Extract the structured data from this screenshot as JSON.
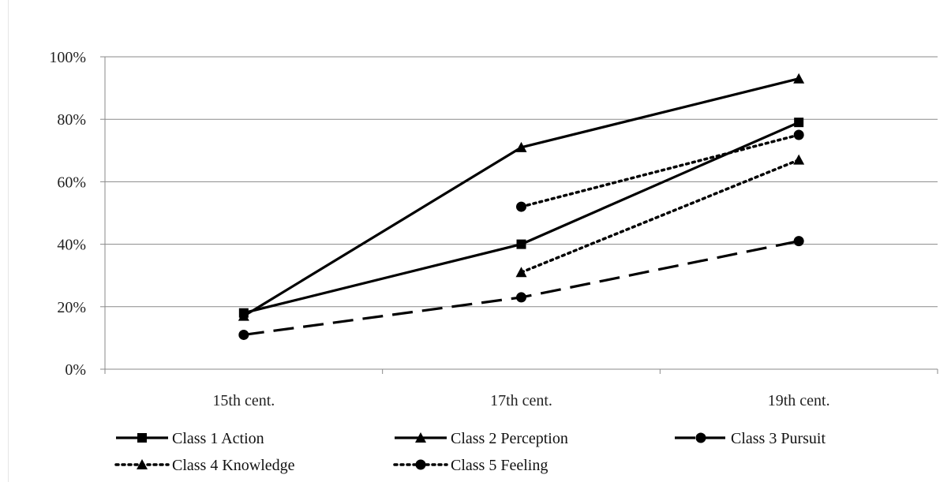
{
  "chart_data": {
    "type": "line",
    "title": "",
    "xlabel": "",
    "ylabel": "",
    "categories": [
      "15th cent.",
      "17th cent.",
      "19th cent."
    ],
    "ylim": [
      0,
      100
    ],
    "yticks": [
      "0%",
      "20%",
      "40%",
      "60%",
      "80%",
      "100%"
    ],
    "grid": true,
    "legend_position": "bottom",
    "series": [
      {
        "name": "Class 1 Action",
        "values": [
          18,
          40,
          79
        ],
        "marker": "square",
        "line": "solid"
      },
      {
        "name": "Class 2 Perception",
        "values": [
          17,
          71,
          93
        ],
        "marker": "triangle",
        "line": "solid"
      },
      {
        "name": "Class 3 Pursuit",
        "values": [
          11,
          23,
          41
        ],
        "marker": "circle",
        "line": "dashed"
      },
      {
        "name": "Class 4 Knowledge",
        "values": [
          null,
          31,
          67
        ],
        "marker": "triangle",
        "line": "dotted"
      },
      {
        "name": "Class 5 Feeling",
        "values": [
          null,
          52,
          75
        ],
        "marker": "circle",
        "line": "dotted"
      }
    ]
  }
}
